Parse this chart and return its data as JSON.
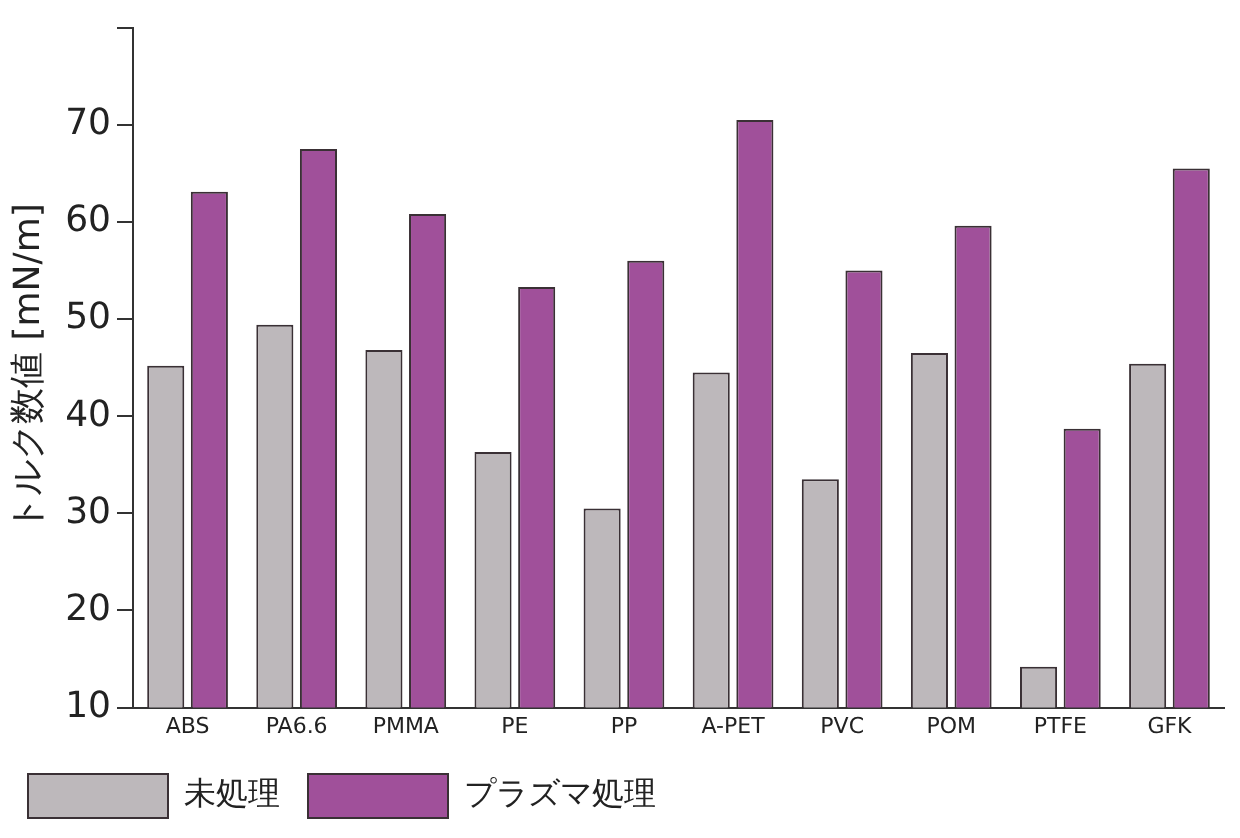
{
  "chart_data": {
    "type": "bar",
    "ylabel": "トルク数値 [mN/m]",
    "categories": [
      "ABS",
      "PA6.6",
      "PMMA",
      "PE",
      "PP",
      "A-PET",
      "PVC",
      "POM",
      "PTFE",
      "GFK"
    ],
    "series": [
      {
        "name": "未処理",
        "color": "#bdb8bb",
        "values": [
          45.2,
          49.4,
          46.8,
          36.3,
          30.5,
          44.5,
          33.5,
          46.5,
          14.2,
          45.4
        ]
      },
      {
        "name": "プラズマ処理",
        "color": "#a0509a",
        "values": [
          63.1,
          67.5,
          60.8,
          53.3,
          56,
          70.5,
          55,
          59.6,
          38.7,
          65.5
        ]
      }
    ],
    "ylim": [
      10,
      80
    ],
    "yticks": [
      10,
      20,
      30,
      40,
      50,
      60,
      70,
      {
        "value": 80,
        "label": null
      }
    ],
    "grid": false,
    "legend": "bottom"
  }
}
